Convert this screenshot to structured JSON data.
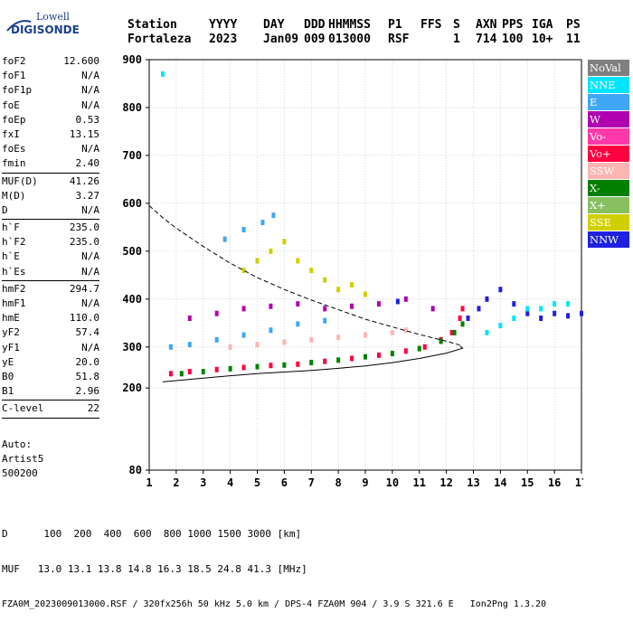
{
  "logo": {
    "line1": "Lowell",
    "line2": "DIGISONDE"
  },
  "header": {
    "row1": [
      "Station",
      "YYYY",
      "DAY",
      "DDD",
      "HHMMSS",
      "P1",
      "FFS",
      "S",
      "AXN",
      "PPS",
      "IGA",
      "PS"
    ],
    "row2": [
      "Fortaleza",
      "2023",
      "Jan09",
      "009",
      "013000",
      "RSF",
      "",
      "1",
      "714",
      "100",
      "10+",
      "11"
    ]
  },
  "params": {
    "group1": [
      {
        "k": "foF2",
        "v": "12.600"
      },
      {
        "k": "foF1",
        "v": "N/A"
      },
      {
        "k": "foF1p",
        "v": "N/A"
      },
      {
        "k": "foE",
        "v": "N/A"
      },
      {
        "k": "foEp",
        "v": "0.53"
      },
      {
        "k": "fxI",
        "v": "13.15"
      },
      {
        "k": "foEs",
        "v": "N/A"
      },
      {
        "k": "fmin",
        "v": "2.40"
      }
    ],
    "group2": [
      {
        "k": "MUF(D)",
        "v": "41.26"
      },
      {
        "k": "M(D)",
        "v": "3.27"
      },
      {
        "k": "D",
        "v": "N/A"
      }
    ],
    "group3": [
      {
        "k": "h`F",
        "v": "235.0"
      },
      {
        "k": "h`F2",
        "v": "235.0"
      },
      {
        "k": "h`E",
        "v": "N/A"
      },
      {
        "k": "h`Es",
        "v": "N/A"
      }
    ],
    "group4": [
      {
        "k": "hmF2",
        "v": "294.7"
      },
      {
        "k": "hmF1",
        "v": "N/A"
      },
      {
        "k": "hmE",
        "v": "110.0"
      },
      {
        "k": "yF2",
        "v": "57.4"
      },
      {
        "k": "yF1",
        "v": "N/A"
      },
      {
        "k": "yE",
        "v": "20.0"
      },
      {
        "k": "B0",
        "v": "51.8"
      },
      {
        "k": "B1",
        "v": "2.96"
      }
    ],
    "group5": [
      {
        "k": "C-level",
        "v": "22"
      }
    ]
  },
  "auto": {
    "l1": "Auto:",
    "l2": "Artist5",
    "l3": "500200"
  },
  "legend": [
    {
      "label": "NoVal",
      "color": "#808080"
    },
    {
      "label": "NNE",
      "color": "#00e5ff"
    },
    {
      "label": "E",
      "color": "#3fa7f5"
    },
    {
      "label": "W",
      "color": "#b000b0"
    },
    {
      "label": "Vo-",
      "color": "#ff3aa8"
    },
    {
      "label": "Vo+",
      "color": "#ff0040"
    },
    {
      "label": "SSW",
      "color": "#ffb4b4"
    },
    {
      "label": "X-",
      "color": "#008000"
    },
    {
      "label": "X+",
      "color": "#88c060"
    },
    {
      "label": "SSE",
      "color": "#d0d000"
    },
    {
      "label": "NNW",
      "color": "#2020e0"
    }
  ],
  "footer": {
    "line1": "D      100  200  400  600  800 1000 1500 3000 [km]",
    "line2": "MUF   13.0 13.1 13.8 14.8 16.3 18.5 24.8 41.3 [MHz]",
    "line3": "FZA0M_2023009013000.RSF / 320fx256h 50 kHz 5.0 km / DPS-4 FZA0M 904 / 3.9 S 321.6 E   Ion2Png 1.3.20"
  },
  "chart_data": {
    "type": "scatter",
    "x_ticks": [
      1,
      2,
      3,
      4,
      5,
      6,
      7,
      8,
      9,
      10,
      11,
      12,
      13,
      14,
      15,
      16,
      17
    ],
    "y_ticks": [
      80,
      200,
      300,
      400,
      500,
      600,
      700,
      800,
      900
    ],
    "xlim": [
      1,
      17
    ],
    "ylim": [
      80,
      900
    ],
    "grid": true,
    "legend_position": "right",
    "series": [
      {
        "name": "Vo+",
        "color": "#ff0040",
        "points": [
          [
            1.8,
            235
          ],
          [
            2.5,
            240
          ],
          [
            3.5,
            245
          ],
          [
            4.5,
            250
          ],
          [
            5.5,
            255
          ],
          [
            6.5,
            258
          ],
          [
            7.5,
            265
          ],
          [
            8.5,
            272
          ],
          [
            9.5,
            280
          ],
          [
            10.5,
            290
          ],
          [
            11.2,
            300
          ],
          [
            11.8,
            315
          ],
          [
            12.2,
            330
          ],
          [
            12.5,
            360
          ],
          [
            12.6,
            380
          ]
        ]
      },
      {
        "name": "X-",
        "color": "#008000",
        "points": [
          [
            2.2,
            235
          ],
          [
            3,
            240
          ],
          [
            4,
            247
          ],
          [
            5,
            252
          ],
          [
            6,
            256
          ],
          [
            7,
            262
          ],
          [
            8,
            268
          ],
          [
            9,
            276
          ],
          [
            10,
            284
          ],
          [
            11,
            296
          ],
          [
            11.8,
            312
          ],
          [
            12.3,
            330
          ],
          [
            12.6,
            348
          ]
        ]
      },
      {
        "name": "E",
        "color": "#3fa7f5",
        "points": [
          [
            1.8,
            300
          ],
          [
            2.5,
            305
          ],
          [
            3.5,
            315
          ],
          [
            4.5,
            325
          ],
          [
            5.5,
            335
          ],
          [
            6.5,
            348
          ],
          [
            7.5,
            355
          ],
          [
            3.8,
            525
          ],
          [
            4.5,
            545
          ],
          [
            5.2,
            560
          ],
          [
            5.6,
            575
          ]
        ]
      },
      {
        "name": "SSW",
        "color": "#ffb4b4",
        "points": [
          [
            4,
            300
          ],
          [
            5,
            305
          ],
          [
            6,
            310
          ],
          [
            7,
            315
          ],
          [
            8,
            320
          ],
          [
            9,
            325
          ],
          [
            10,
            330
          ],
          [
            10.5,
            335
          ]
        ]
      },
      {
        "name": "W",
        "color": "#b000b0",
        "points": [
          [
            2.5,
            360
          ],
          [
            3.5,
            370
          ],
          [
            4.5,
            380
          ],
          [
            5.5,
            385
          ],
          [
            6.5,
            390
          ],
          [
            7.5,
            380
          ],
          [
            8.5,
            385
          ],
          [
            9.5,
            390
          ],
          [
            10.5,
            400
          ],
          [
            11.5,
            380
          ]
        ]
      },
      {
        "name": "SSE",
        "color": "#d0d000",
        "points": [
          [
            5,
            480
          ],
          [
            5.5,
            500
          ],
          [
            6,
            520
          ],
          [
            6.5,
            480
          ],
          [
            7,
            460
          ],
          [
            7.5,
            440
          ],
          [
            8,
            420
          ],
          [
            8.5,
            430
          ],
          [
            9,
            410
          ],
          [
            4.5,
            460
          ]
        ]
      },
      {
        "name": "NNW",
        "color": "#2020e0",
        "points": [
          [
            12.8,
            360
          ],
          [
            13.2,
            380
          ],
          [
            13.5,
            400
          ],
          [
            14,
            420
          ],
          [
            14.5,
            390
          ],
          [
            15,
            370
          ],
          [
            15.5,
            360
          ],
          [
            16,
            370
          ],
          [
            16.5,
            365
          ],
          [
            17,
            370
          ],
          [
            10.2,
            395
          ]
        ]
      },
      {
        "name": "NNE",
        "color": "#00e5ff",
        "points": [
          [
            13.5,
            330
          ],
          [
            14,
            345
          ],
          [
            14.5,
            360
          ],
          [
            15,
            380
          ],
          [
            15.5,
            380
          ],
          [
            16,
            390
          ],
          [
            16.5,
            390
          ],
          [
            1.5,
            870
          ]
        ]
      }
    ],
    "curves": [
      {
        "style": "dashed",
        "points": [
          [
            1,
            595
          ],
          [
            1.5,
            570
          ],
          [
            2,
            548
          ],
          [
            3,
            510
          ],
          [
            4,
            475
          ],
          [
            5,
            445
          ],
          [
            6,
            420
          ],
          [
            7,
            398
          ],
          [
            8,
            378
          ],
          [
            9,
            358
          ],
          [
            10,
            342
          ],
          [
            11,
            326
          ],
          [
            12,
            312
          ],
          [
            12.5,
            304
          ]
        ]
      },
      {
        "style": "solid",
        "points": [
          [
            1.5,
            215
          ],
          [
            2,
            218
          ],
          [
            3,
            224
          ],
          [
            4,
            230
          ],
          [
            5,
            235
          ],
          [
            6,
            239
          ],
          [
            7,
            243
          ],
          [
            8,
            248
          ],
          [
            9,
            254
          ],
          [
            10,
            262
          ],
          [
            11,
            272
          ],
          [
            12,
            285
          ],
          [
            12.6,
            297
          ],
          [
            12.5,
            302
          ]
        ]
      }
    ]
  }
}
